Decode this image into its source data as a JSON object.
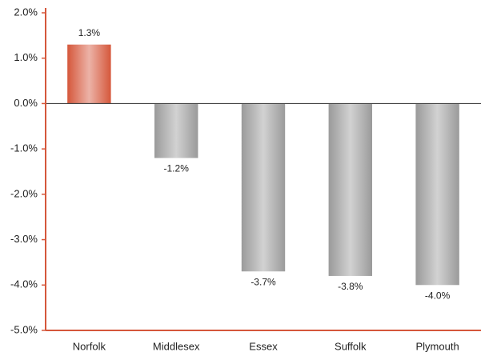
{
  "chart_data": {
    "type": "bar",
    "categories": [
      "Norfolk",
      "Middlesex",
      "Essex",
      "Suffolk",
      "Plymouth"
    ],
    "values": [
      1.3,
      -1.2,
      -3.7,
      -3.8,
      -4.0
    ],
    "value_labels": [
      "1.3%",
      "-1.2%",
      "-3.7%",
      "-3.8%",
      "-4.0%"
    ],
    "colors": [
      "#d5573b",
      "#9a9a9a",
      "#9a9a9a",
      "#9a9a9a",
      "#9a9a9a"
    ],
    "ylim": [
      -5,
      2
    ],
    "yticks": [
      {
        "value": 2,
        "label": "2.0%"
      },
      {
        "value": 1,
        "label": "1.0%"
      },
      {
        "value": 0,
        "label": "0.0%"
      },
      {
        "value": -1,
        "label": "-1.0%"
      },
      {
        "value": -2,
        "label": "-2.0%"
      },
      {
        "value": -3,
        "label": "-3.0%"
      },
      {
        "value": -4,
        "label": "-4.0%"
      },
      {
        "value": -5,
        "label": "-5.0%"
      }
    ]
  }
}
